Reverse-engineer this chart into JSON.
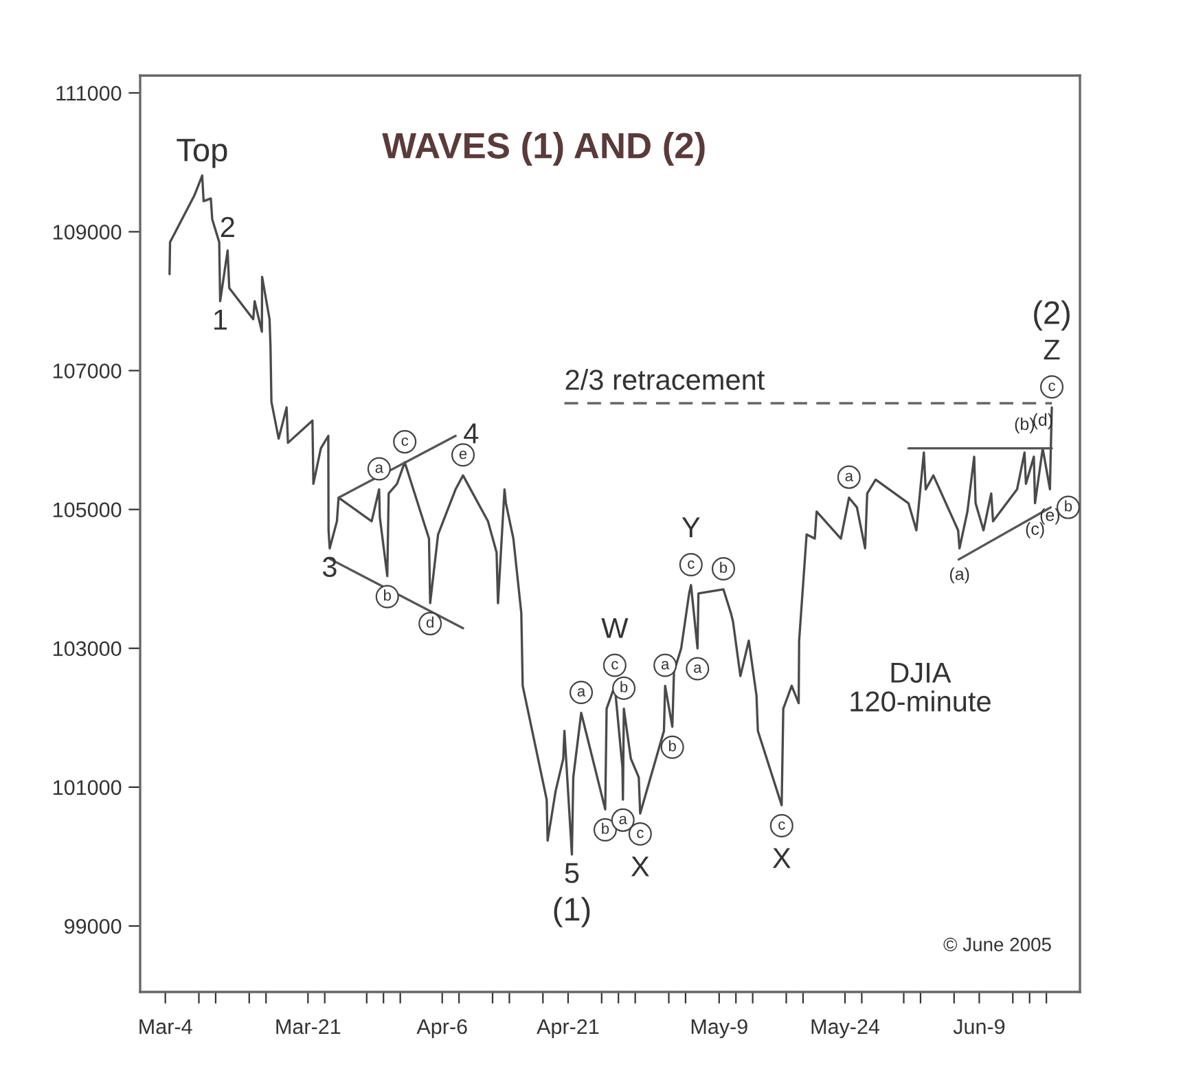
{
  "chart_data": {
    "type": "line",
    "title": "WAVES (1) AND (2)",
    "subtitle": "DJIA\n120-minute",
    "xlim": [
      "2005-03-01",
      "2005-06-21"
    ],
    "ylim": [
      98050,
      111250
    ],
    "yticks": [
      99000,
      101000,
      103000,
      105000,
      107000,
      109000,
      111000
    ],
    "xticks": [
      {
        "value": "2005-03-04",
        "label": "Mar-4"
      },
      {
        "value": "2005-03-08",
        "label": null
      },
      {
        "value": "2005-03-10",
        "label": null
      },
      {
        "value": "2005-03-14",
        "label": null
      },
      {
        "value": "2005-03-16",
        "label": null
      },
      {
        "value": "2005-03-21",
        "label": "Mar-21"
      },
      {
        "value": "2005-03-23",
        "label": null
      },
      {
        "value": "2005-03-28",
        "label": null
      },
      {
        "value": "2005-03-30",
        "label": null
      },
      {
        "value": "2005-04-01",
        "label": null
      },
      {
        "value": "2005-04-06",
        "label": "Apr-6"
      },
      {
        "value": "2005-04-08",
        "label": null
      },
      {
        "value": "2005-04-12",
        "label": null
      },
      {
        "value": "2005-04-14",
        "label": null
      },
      {
        "value": "2005-04-18",
        "label": null
      },
      {
        "value": "2005-04-21",
        "label": "Apr-21"
      },
      {
        "value": "2005-04-25",
        "label": null
      },
      {
        "value": "2005-04-27",
        "label": null
      },
      {
        "value": "2005-04-29",
        "label": null
      },
      {
        "value": "2005-05-03",
        "label": null
      },
      {
        "value": "2005-05-05",
        "label": null
      },
      {
        "value": "2005-05-09",
        "label": "May-9"
      },
      {
        "value": "2005-05-11",
        "label": null
      },
      {
        "value": "2005-05-13",
        "label": null
      },
      {
        "value": "2005-05-17",
        "label": null
      },
      {
        "value": "2005-05-19",
        "label": null
      },
      {
        "value": "2005-05-24",
        "label": "May-24"
      },
      {
        "value": "2005-05-26",
        "label": null
      },
      {
        "value": "2005-05-31",
        "label": null
      },
      {
        "value": "2005-06-02",
        "label": null
      },
      {
        "value": "2005-06-06",
        "label": null
      },
      {
        "value": "2005-06-09",
        "label": "Jun-9"
      },
      {
        "value": "2005-06-13",
        "label": null
      },
      {
        "value": "2005-06-15",
        "label": null
      },
      {
        "value": "2005-06-17",
        "label": null
      }
    ],
    "grid": false,
    "marker": "none",
    "series": [
      {
        "color": "#4a4a4a",
        "line_style": "solid",
        "x": [
          "2005-03-04T12:10",
          "2005-03-04T13:30",
          "2005-03-07T10:50",
          "2005-03-08T09:30",
          "2005-03-08T13:30",
          "2005-03-09T10:10",
          "2005-03-09T14:10",
          "2005-03-10T10:10",
          "2005-03-10T12:50",
          "2005-03-11T10:10",
          "2005-03-11T14:50",
          "2005-03-14T11:30",
          "2005-03-14T15:30",
          "2005-03-15T12:10",
          "2005-03-15T12:50",
          "2005-03-16T10:10",
          "2005-03-16T12:50",
          "2005-03-16T15:30",
          "2005-03-17T12:10",
          "2005-03-18T10:50",
          "2005-03-18T14:50",
          "2005-03-21T12:50",
          "2005-03-21T15:30",
          "2005-03-22T12:50",
          "2005-03-23T10:10",
          "2005-03-23T10:50",
          "2005-03-23T14:10",
          "2005-03-24T10:50",
          "2005-03-24T15:30",
          "2005-03-28T14:10",
          "2005-03-29T11:30",
          "2005-03-29T13:30",
          "2005-03-30T10:50",
          "2005-03-30T14:50",
          "2005-03-31T14:50",
          "2005-04-01T12:50",
          "2005-04-04T10:10",
          "2005-04-04T13:30",
          "2005-04-05T12:10",
          "2005-04-06T13:30",
          "2005-04-07T14:10",
          "2005-04-08T11:30",
          "2005-04-11T10:50",
          "2005-04-12T11:30",
          "2005-04-12T15:30",
          "2005-04-13T10:10",
          "2005-04-13T14:10",
          "2005-04-14T11:30",
          "2005-04-15T10:10",
          "2005-04-15T14:10",
          "2005-04-18T10:50",
          "2005-04-18T13:30",
          "2005-04-19T12:10",
          "2005-04-20T10:10",
          "2005-04-20T13:30",
          "2005-04-21T10:50",
          "2005-04-21T14:50",
          "2005-04-22T13:30",
          "2005-04-25T10:10",
          "2005-04-25T14:10",
          "2005-04-26T13:30",
          "2005-04-27T11:30",
          "2005-04-27T12:50",
          "2005-04-27T15:30",
          "2005-04-28T11:30",
          "2005-04-29T10:10",
          "2005-04-29T14:10",
          "2005-05-02T10:10",
          "2005-05-02T13:30",
          "2005-05-03T10:10",
          "2005-05-03T14:50",
          "2005-05-04T11:30",
          "2005-05-05T10:10",
          "2005-05-05T15:30",
          "2005-05-06T10:10",
          "2005-05-06T12:50",
          "2005-05-09T12:10",
          "2005-05-10T09:30",
          "2005-05-10T15:30",
          "2005-05-11T12:50",
          "2005-05-12T12:50",
          "2005-05-13T10:50",
          "2005-05-13T14:50",
          "2005-05-16T10:50",
          "2005-05-16T15:30",
          "2005-05-17T15:30",
          "2005-05-18T11:30",
          "2005-05-18T12:50",
          "2005-05-19T10:10",
          "2005-05-20T09:30",
          "2005-05-20T14:50",
          "2005-05-23T12:10",
          "2005-05-24T11:30",
          "2005-05-25T10:10",
          "2005-05-26T09:30",
          "2005-05-26T15:30",
          "2005-05-27T15:30",
          "2005-05-31T13:30",
          "2005-06-01T12:10",
          "2005-06-02T09:30",
          "2005-06-02T14:50",
          "2005-06-03T12:50",
          "2005-06-06T11:30",
          "2005-06-06T15:30",
          "2005-06-07T14:10",
          "2005-06-08T09:30",
          "2005-06-08T13:30",
          "2005-06-09T12:10",
          "2005-06-10T10:10",
          "2005-06-10T15:30",
          "2005-06-13T12:10",
          "2005-06-14T09:30",
          "2005-06-14T13:30",
          "2005-06-15T12:10",
          "2005-06-15T15:30",
          "2005-06-16T13:30",
          "2005-06-17T10:10",
          "2005-06-17T12:10",
          "2005-06-17T15:30"
        ],
        "values": [
          108390,
          108850,
          109520,
          109810,
          109440,
          109480,
          109180,
          108850,
          108000,
          108730,
          108190,
          107740,
          108000,
          107560,
          108350,
          107740,
          107340,
          106550,
          106020,
          106470,
          105960,
          106280,
          105370,
          105880,
          106060,
          104700,
          104440,
          104830,
          105170,
          104830,
          105290,
          104890,
          104040,
          105230,
          105370,
          105680,
          104580,
          103650,
          104640,
          104970,
          105290,
          105490,
          104830,
          104380,
          103650,
          105290,
          105090,
          104580,
          103510,
          102460,
          100820,
          100230,
          100940,
          101410,
          101810,
          100030,
          101140,
          102070,
          100680,
          102130,
          102460,
          101280,
          100820,
          102130,
          101410,
          101140,
          100620,
          101810,
          102460,
          101870,
          102660,
          103000,
          103790,
          103910,
          103000,
          103790,
          103850,
          103510,
          103390,
          102600,
          103110,
          102320,
          101810,
          100740,
          102130,
          102460,
          102210,
          103110,
          104640,
          104580,
          104970,
          104580,
          105170,
          105030,
          104440,
          105230,
          105430,
          105090,
          104700,
          105820,
          105290,
          105490,
          104700,
          104440,
          104970,
          105760,
          105090,
          104700,
          105230,
          104830,
          105290,
          105820,
          105370,
          105760,
          105090,
          105880,
          105290,
          105760,
          106470
        ]
      },
      {
        "color": "#555555",
        "line_style": "solid",
        "x": [
          "2005-03-24T15:30",
          "2005-04-07T14:10"
        ],
        "values": [
          105170,
          106060
        ]
      },
      {
        "color": "#555555",
        "line_style": "solid",
        "x": [
          "2005-03-23T10:10",
          "2005-04-08T11:30"
        ],
        "values": [
          104300,
          103290
        ]
      },
      {
        "color": "#555555",
        "line_style": "solid",
        "x": [
          "2005-05-31T13:30",
          "2005-06-17T15:30"
        ],
        "values": [
          105880,
          105880
        ]
      },
      {
        "color": "#555555",
        "line_style": "solid",
        "x": [
          "2005-06-06T13:30",
          "2005-06-17T12:10"
        ],
        "values": [
          104280,
          105030
        ]
      },
      {
        "color": "#666666",
        "line_style": "dashed",
        "x": [
          "2005-04-20T13:30",
          "2005-06-17T16:00"
        ],
        "values": [
          106530,
          106530
        ]
      }
    ],
    "annotations": [
      {
        "text": "Top",
        "x": "2005-03-08T09:30",
        "y": 109810
      },
      {
        "text": "2",
        "x": "2005-03-11T10:10",
        "y": 108730
      },
      {
        "text": "1",
        "x": "2005-03-10T12:50",
        "y": 108000
      },
      {
        "text": "3",
        "x": "2005-03-23T14:10",
        "y": 104440
      },
      {
        "text": "4",
        "x": "2005-04-07T14:10",
        "y": 106060
      },
      {
        "text": "a",
        "x": "2005-03-29T11:30",
        "y": 105290
      },
      {
        "text": "b",
        "x": "2005-03-30T10:50",
        "y": 104040
      },
      {
        "text": "c",
        "x": "2005-04-01T12:50",
        "y": 105680
      },
      {
        "text": "d",
        "x": "2005-04-04T13:30",
        "y": 103650
      },
      {
        "text": "e",
        "x": "2005-04-08T11:30",
        "y": 105490
      },
      {
        "text": "5",
        "x": "2005-04-21T10:50",
        "y": 100030
      },
      {
        "text": "(1)",
        "x": "2005-04-21T10:50",
        "y": 100030
      },
      {
        "text": "b",
        "x": "2005-04-25T10:10",
        "y": 100680
      },
      {
        "text": "a",
        "x": "2005-04-22T13:30",
        "y": 102070
      },
      {
        "text": "c",
        "x": "2005-04-26T13:30",
        "y": 102460
      },
      {
        "text": "W",
        "x": "2005-04-26T13:30",
        "y": 102460
      },
      {
        "text": "b",
        "x": "2005-04-27T15:30",
        "y": 102130
      },
      {
        "text": "a",
        "x": "2005-04-27T12:50",
        "y": 100820
      },
      {
        "text": "c",
        "x": "2005-04-29T14:10",
        "y": 100620
      },
      {
        "text": "X",
        "x": "2005-04-29T14:10",
        "y": 100620
      },
      {
        "text": "a",
        "x": "2005-05-02T13:30",
        "y": 102460
      },
      {
        "text": "b",
        "x": "2005-05-03T10:10",
        "y": 101870
      },
      {
        "text": "c",
        "x": "2005-05-05T15:30",
        "y": 103910
      },
      {
        "text": "Y",
        "x": "2005-05-05T15:30",
        "y": 103910
      },
      {
        "text": "b",
        "x": "2005-05-09T12:10",
        "y": 103850
      },
      {
        "text": "a",
        "x": "2005-05-06T10:10",
        "y": 103000
      },
      {
        "text": "c",
        "x": "2005-05-16T10:50",
        "y": 100740
      },
      {
        "text": "X",
        "x": "2005-05-16T10:50",
        "y": 100740
      },
      {
        "text": "a",
        "x": "2005-05-24T11:30",
        "y": 105170
      },
      {
        "text": "(a)",
        "x": "2005-06-06T15:30",
        "y": 104440
      },
      {
        "text": "(b)",
        "x": "2005-06-14T09:30",
        "y": 105820
      },
      {
        "text": "(c)",
        "x": "2005-06-15T15:30",
        "y": 105090
      },
      {
        "text": "(d)",
        "x": "2005-06-16T13:30",
        "y": 105880
      },
      {
        "text": "(e)",
        "x": "2005-06-17T10:10",
        "y": 105290
      },
      {
        "text": "b",
        "x": "2005-06-17T12:10",
        "y": 105030
      },
      {
        "text": "c",
        "x": "2005-06-17T15:30",
        "y": 106470
      },
      {
        "text": "Z",
        "x": "2005-06-17T15:30",
        "y": 106470
      },
      {
        "text": "(2)",
        "x": "2005-06-17T15:30",
        "y": 106470
      },
      {
        "text": "2/3 retracement",
        "x": "2005-04-20T13:30",
        "y": 106530
      },
      "© June 2005"
    ]
  }
}
